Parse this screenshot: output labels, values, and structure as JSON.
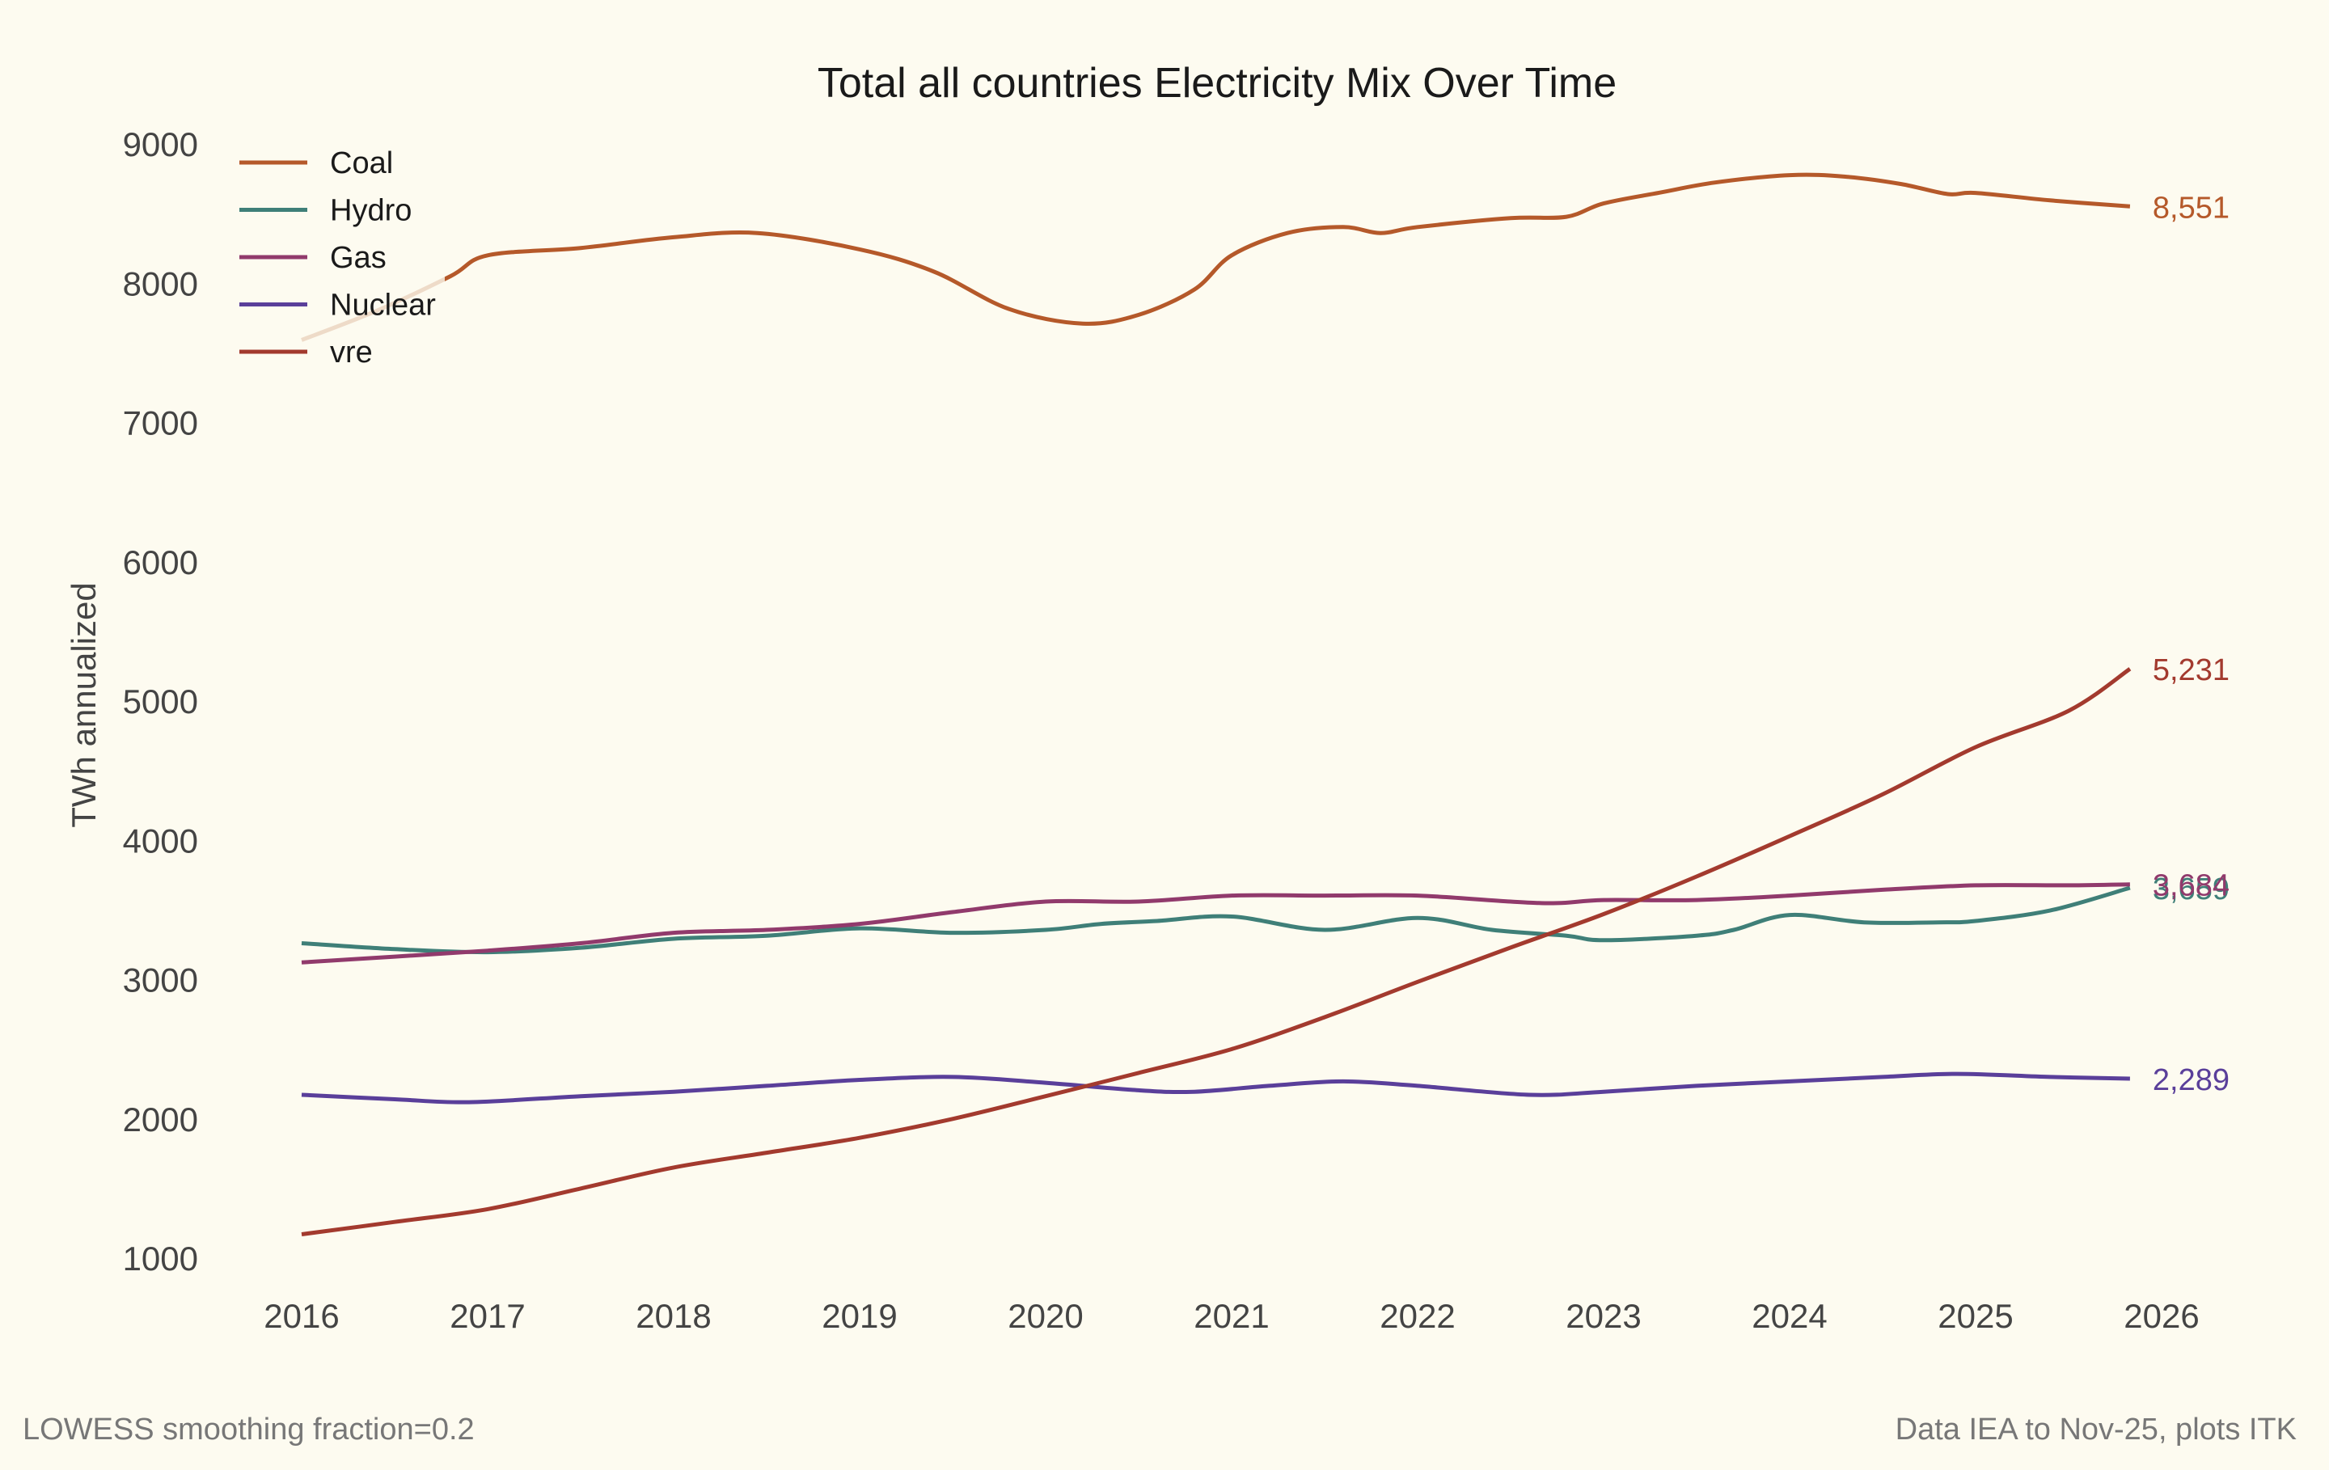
{
  "chart_data": {
    "type": "line",
    "title": "Total all countries Electricity Mix Over Time",
    "xlabel": "",
    "ylabel": "TWh annualized",
    "xlim": [
      2016,
      2026
    ],
    "ylim": [
      1000,
      9000
    ],
    "x_ticks": [
      2016,
      2017,
      2018,
      2019,
      2020,
      2021,
      2022,
      2023,
      2024,
      2025,
      2026
    ],
    "x_tick_labels": [
      "2016",
      "2017",
      "2018",
      "2019",
      "2020",
      "2021",
      "2022",
      "2023",
      "2024",
      "2025",
      "2026"
    ],
    "y_ticks": [
      1000,
      2000,
      3000,
      4000,
      5000,
      6000,
      7000,
      8000,
      9000
    ],
    "y_tick_labels": [
      "1000",
      "2000",
      "3000",
      "4000",
      "5000",
      "6000",
      "7000",
      "8000",
      "9000"
    ],
    "grid": false,
    "legend_position": "top-left",
    "footer_left": "LOWESS smoothing fraction=0.2",
    "footer_right": "Data IEA to Nov-25, plots ITK",
    "series": [
      {
        "name": "Coal",
        "color": "#B5592A",
        "end_label": "8,551",
        "points": [
          [
            2016.0,
            7592
          ],
          [
            2016.4,
            7800
          ],
          [
            2016.8,
            8050
          ],
          [
            2017.0,
            8200
          ],
          [
            2017.5,
            8253
          ],
          [
            2018.0,
            8330
          ],
          [
            2018.45,
            8360
          ],
          [
            2019.0,
            8243
          ],
          [
            2019.4,
            8083
          ],
          [
            2019.8,
            7816
          ],
          [
            2020.2,
            7710
          ],
          [
            2020.5,
            7773
          ],
          [
            2020.8,
            7955
          ],
          [
            2021.0,
            8200
          ],
          [
            2021.3,
            8360
          ],
          [
            2021.6,
            8403
          ],
          [
            2021.8,
            8360
          ],
          [
            2022.0,
            8403
          ],
          [
            2022.5,
            8467
          ],
          [
            2022.8,
            8477
          ],
          [
            2023.0,
            8573
          ],
          [
            2023.3,
            8650
          ],
          [
            2023.6,
            8723
          ],
          [
            2024.0,
            8776
          ],
          [
            2024.3,
            8765
          ],
          [
            2024.6,
            8712
          ],
          [
            2024.85,
            8640
          ],
          [
            2025.0,
            8648
          ],
          [
            2025.4,
            8595
          ],
          [
            2025.83,
            8551
          ]
        ]
      },
      {
        "name": "Hydro",
        "color": "#3F7F78",
        "end_label": "3,659",
        "points": [
          [
            2016.0,
            3261
          ],
          [
            2016.5,
            3219
          ],
          [
            2017.0,
            3197
          ],
          [
            2017.5,
            3229
          ],
          [
            2018.0,
            3293
          ],
          [
            2018.5,
            3315
          ],
          [
            2019.0,
            3368
          ],
          [
            2019.5,
            3336
          ],
          [
            2020.0,
            3357
          ],
          [
            2020.3,
            3400
          ],
          [
            2020.6,
            3421
          ],
          [
            2021.0,
            3453
          ],
          [
            2021.5,
            3357
          ],
          [
            2022.0,
            3443
          ],
          [
            2022.4,
            3357
          ],
          [
            2022.8,
            3315
          ],
          [
            2023.0,
            3283
          ],
          [
            2023.5,
            3315
          ],
          [
            2023.7,
            3357
          ],
          [
            2024.0,
            3464
          ],
          [
            2024.4,
            3411
          ],
          [
            2024.8,
            3411
          ],
          [
            2025.0,
            3421
          ],
          [
            2025.4,
            3496
          ],
          [
            2025.83,
            3659
          ]
        ]
      },
      {
        "name": "Gas",
        "color": "#913A6C",
        "end_label": "3,684",
        "points": [
          [
            2016.0,
            3123
          ],
          [
            2016.5,
            3165
          ],
          [
            2017.0,
            3208
          ],
          [
            2017.5,
            3261
          ],
          [
            2018.0,
            3336
          ],
          [
            2018.5,
            3357
          ],
          [
            2019.0,
            3400
          ],
          [
            2019.5,
            3485
          ],
          [
            2020.0,
            3560
          ],
          [
            2020.5,
            3560
          ],
          [
            2021.0,
            3603
          ],
          [
            2021.5,
            3603
          ],
          [
            2022.0,
            3603
          ],
          [
            2022.5,
            3560
          ],
          [
            2022.75,
            3549
          ],
          [
            2023.0,
            3571
          ],
          [
            2023.5,
            3571
          ],
          [
            2024.0,
            3603
          ],
          [
            2024.5,
            3645
          ],
          [
            2025.0,
            3677
          ],
          [
            2025.5,
            3677
          ],
          [
            2025.83,
            3684
          ]
        ]
      },
      {
        "name": "Nuclear",
        "color": "#5A3F9A",
        "end_label": "2,289",
        "points": [
          [
            2016.0,
            2173
          ],
          [
            2016.5,
            2141
          ],
          [
            2016.9,
            2120
          ],
          [
            2017.5,
            2163
          ],
          [
            2018.0,
            2195
          ],
          [
            2018.5,
            2237
          ],
          [
            2019.0,
            2280
          ],
          [
            2019.5,
            2301
          ],
          [
            2020.0,
            2259
          ],
          [
            2020.5,
            2205
          ],
          [
            2020.8,
            2195
          ],
          [
            2021.2,
            2237
          ],
          [
            2021.6,
            2269
          ],
          [
            2022.0,
            2237
          ],
          [
            2022.6,
            2173
          ],
          [
            2023.0,
            2195
          ],
          [
            2023.5,
            2237
          ],
          [
            2024.0,
            2269
          ],
          [
            2024.5,
            2301
          ],
          [
            2024.9,
            2323
          ],
          [
            2025.4,
            2301
          ],
          [
            2025.83,
            2289
          ]
        ]
      },
      {
        "name": "vre",
        "color": "#A33A2E",
        "end_label": "5,231",
        "points": [
          [
            2016.0,
            1171
          ],
          [
            2016.5,
            1260
          ],
          [
            2017.0,
            1352
          ],
          [
            2017.5,
            1500
          ],
          [
            2018.0,
            1651
          ],
          [
            2018.5,
            1757
          ],
          [
            2019.0,
            1864
          ],
          [
            2019.5,
            2000
          ],
          [
            2020.0,
            2163
          ],
          [
            2020.5,
            2330
          ],
          [
            2021.0,
            2501
          ],
          [
            2021.5,
            2730
          ],
          [
            2022.0,
            2984
          ],
          [
            2022.5,
            3230
          ],
          [
            2023.0,
            3470
          ],
          [
            2023.5,
            3740
          ],
          [
            2024.0,
            4030
          ],
          [
            2024.5,
            4330
          ],
          [
            2025.0,
            4669
          ],
          [
            2025.5,
            4930
          ],
          [
            2025.83,
            5231
          ]
        ]
      }
    ]
  }
}
